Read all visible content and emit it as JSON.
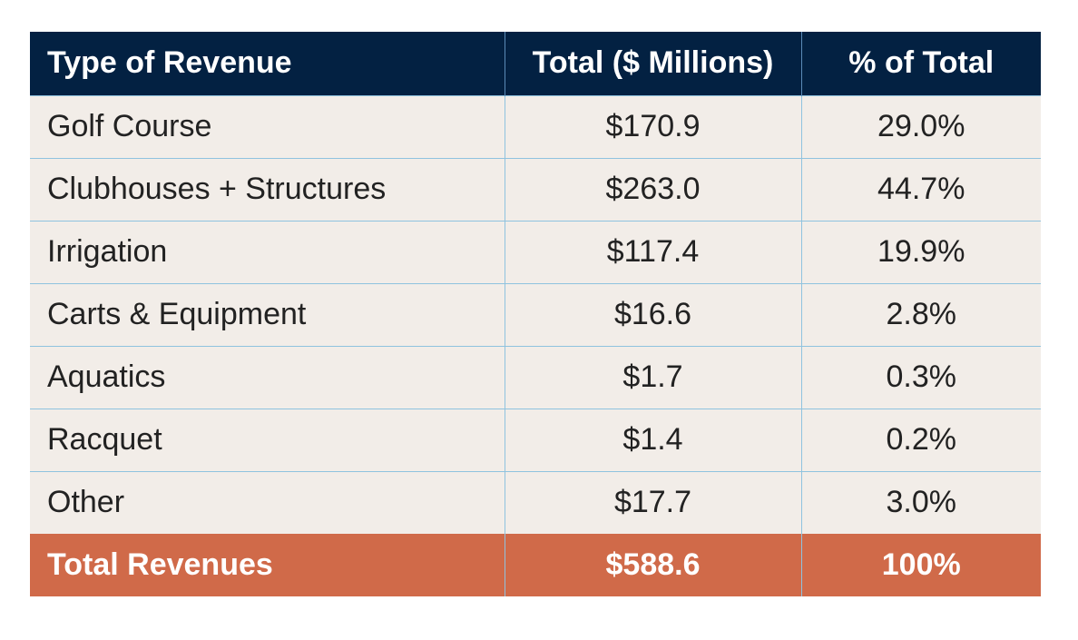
{
  "table": {
    "headers": [
      "Type of Revenue",
      "Total ($ Millions)",
      "% of Total"
    ],
    "rows": [
      [
        "Golf Course",
        "$170.9",
        "29.0%"
      ],
      [
        "Clubhouses + Structures",
        "$263.0",
        "44.7%"
      ],
      [
        "Irrigation",
        "$117.4",
        "19.9%"
      ],
      [
        "Carts & Equipment",
        "$16.6",
        "2.8%"
      ],
      [
        "Aquatics",
        "$1.7",
        "0.3%"
      ],
      [
        "Racquet",
        "$1.4",
        "0.2%"
      ],
      [
        "Other",
        "$17.7",
        "3.0%"
      ]
    ],
    "total": [
      "Total Revenues",
      "$588.6",
      "100%"
    ]
  },
  "colors": {
    "header_bg": "#032142",
    "row_bg": "#f2ede8",
    "total_bg": "#d06a49",
    "grid_line": "#8fc3df"
  }
}
